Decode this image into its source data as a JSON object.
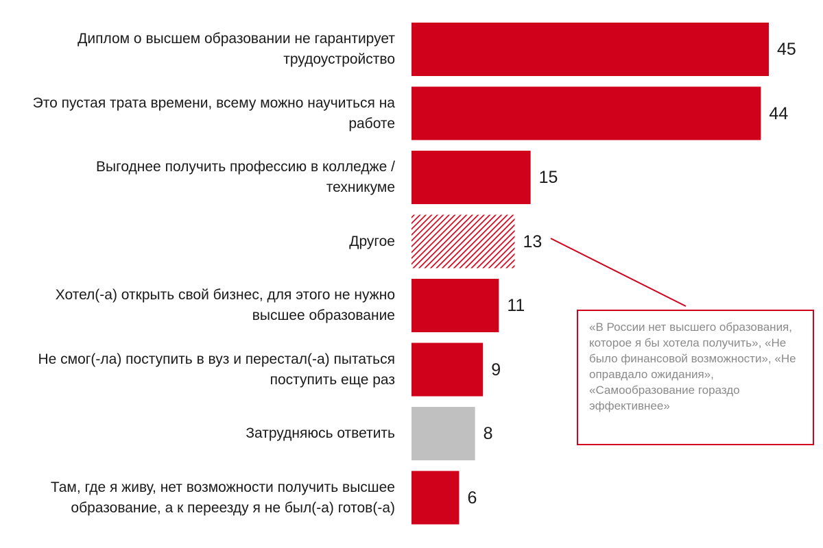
{
  "chart_data": {
    "type": "bar",
    "orientation": "horizontal",
    "grid": false,
    "legend": "none",
    "xlim": [
      0,
      45
    ],
    "categories": [
      "Диплом о высшем образовании не гарантирует трудоустройство",
      "Это пустая трата времени, всему можно научиться на работе",
      "Выгоднее получить профессию в колледже / техникуме",
      "Другое",
      "Хотел(-а) открыть свой бизнес, для этого не нужно высшее образование",
      "Не смог(-ла) поступить в вуз и перестал(-а) пытаться поступить еще раз",
      "Затрудняюсь ответить",
      "Там, где я живу, нет возможности получить высшее образование, а к переезду я не был(-а) готов(-а)"
    ],
    "label_lines": [
      [
        "Диплом о высшем образовании не гарантирует",
        "трудоустройство"
      ],
      [
        "Это пустая трата времени, всему можно научиться на",
        "работе"
      ],
      [
        "Выгоднее получить профессию в колледже /",
        "техникуме"
      ],
      [
        "Другое"
      ],
      [
        "Хотел(-а) открыть свой бизнес, для этого не нужно",
        "высшее образование"
      ],
      [
        "Не смог(-ла) поступить в вуз и перестал(-а) пытаться",
        "поступить еще раз"
      ],
      [
        "Затрудняюсь ответить"
      ],
      [
        "Там, где я живу, нет возможности получить высшее",
        "образование, а к переезду я не был(-а) готов(-а)"
      ]
    ],
    "values": [
      45,
      44,
      15,
      13,
      11,
      9,
      8,
      6
    ],
    "styles": [
      "solid",
      "solid",
      "solid",
      "hatched",
      "solid",
      "solid",
      "gray",
      "solid"
    ],
    "colors": {
      "bar": "#d0021b",
      "gray": "#c0c0c0",
      "hatch": "#d0021b",
      "callout": "#d0021b",
      "callout_text": "#8a8a8a"
    },
    "annotation": {
      "target_index": 3,
      "text": "«В России нет высшего образования, которое я бы хотела получить», «Не было финансовой возможности», «Не оправдало ожидания», «Самообразование гораздо эффективнее»"
    }
  }
}
